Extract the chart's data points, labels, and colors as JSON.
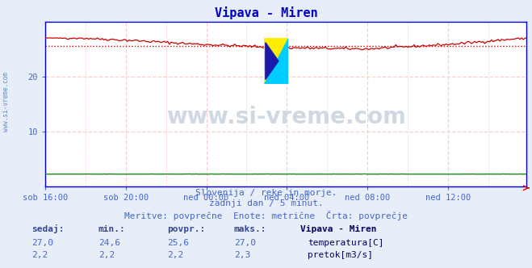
{
  "title": "Vipava - Miren",
  "bg_color": "#e8eef8",
  "plot_bg_color": "#ffffff",
  "grid_color": "#ffcccc",
  "tick_color": "#4466cc",
  "axis_color": "#0000cc",
  "x_labels": [
    "sob 16:00",
    "sob 20:00",
    "ned 00:00",
    "ned 04:00",
    "ned 08:00",
    "ned 12:00"
  ],
  "x_ticks_pos": [
    0,
    48,
    96,
    144,
    192,
    240
  ],
  "total_points": 288,
  "ylim": [
    0,
    30
  ],
  "yticks": [
    10,
    20
  ],
  "temp_color": "#cc0000",
  "flow_color": "#008800",
  "avg_line_color": "#cc0000",
  "avg_value": 25.6,
  "temp_min": 24.6,
  "temp_max": 27.0,
  "flow_min": 2.2,
  "flow_max": 2.3,
  "watermark_text": "www.si-vreme.com",
  "watermark_color": "#aabbcc",
  "subtitle1": "Slovenija / reke in morje.",
  "subtitle2": "zadnji dan / 5 minut.",
  "subtitle3": "Meritve: povprečne  Enote: metrične  Črta: povprečje",
  "label_sedaj": "sedaj:",
  "label_min": "min.:",
  "label_povpr": "povpr.:",
  "label_maks": "maks.:",
  "label_station": "Vipava - Miren",
  "label_temp": "temperatura[C]",
  "label_flow": "pretok[m3/s]",
  "text_color_blue": "#4466cc",
  "text_color_dark": "#334499",
  "temp_vals": [
    "27,0",
    "24,6",
    "25,6",
    "27,0"
  ],
  "flow_vals": [
    "2,2",
    "2,2",
    "2,2",
    "2,3"
  ],
  "left_label": "www.si-vreme.com",
  "left_label_color": "#6688bb"
}
